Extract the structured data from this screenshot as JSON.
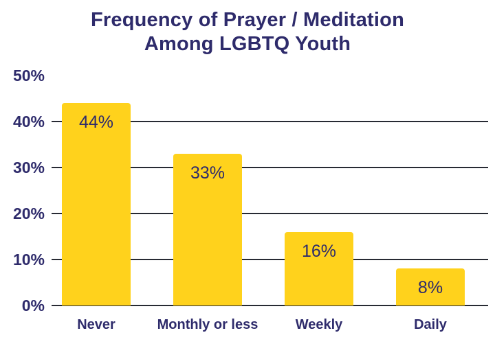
{
  "chart_data": {
    "type": "bar",
    "title": "Frequency of Prayer / Meditation Among LGBTQ Youth",
    "title_lines": [
      "Frequency of Prayer / Meditation",
      "Among LGBTQ Youth"
    ],
    "categories": [
      "Never",
      "Monthly or less",
      "Weekly",
      "Daily"
    ],
    "values": [
      44,
      33,
      16,
      8
    ],
    "value_labels": [
      "44%",
      "33%",
      "16%",
      "8%"
    ],
    "xlabel": "",
    "ylabel": "",
    "ylim": [
      0,
      50
    ],
    "yticks": [
      0,
      10,
      20,
      30,
      40,
      50
    ],
    "ytick_labels": [
      "0%",
      "10%",
      "20%",
      "30%",
      "40%",
      "50%"
    ],
    "gridline_ticks": [
      0,
      10,
      20,
      30,
      40
    ],
    "grid": "horizontal",
    "legend": "none",
    "colors": {
      "bar_fill": "#FFD21C",
      "text_navy": "#2E2B6B",
      "gridline": "#272A33",
      "background": "#FFFFFF"
    }
  }
}
